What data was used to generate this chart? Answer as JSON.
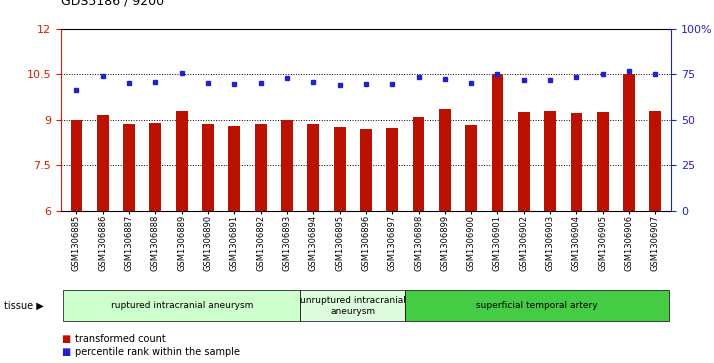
{
  "title": "GDS5186 / 9200",
  "samples": [
    "GSM1306885",
    "GSM1306886",
    "GSM1306887",
    "GSM1306888",
    "GSM1306889",
    "GSM1306890",
    "GSM1306891",
    "GSM1306892",
    "GSM1306893",
    "GSM1306894",
    "GSM1306895",
    "GSM1306896",
    "GSM1306897",
    "GSM1306898",
    "GSM1306899",
    "GSM1306900",
    "GSM1306901",
    "GSM1306902",
    "GSM1306903",
    "GSM1306904",
    "GSM1306905",
    "GSM1306906",
    "GSM1306907"
  ],
  "bar_values": [
    9.0,
    9.15,
    8.85,
    8.9,
    9.3,
    8.85,
    8.8,
    8.85,
    9.0,
    8.85,
    8.75,
    8.7,
    8.72,
    9.1,
    9.35,
    8.82,
    10.5,
    9.25,
    9.3,
    9.22,
    9.25,
    10.5,
    9.3
  ],
  "dot_values": [
    10.0,
    10.45,
    10.2,
    10.25,
    10.55,
    10.22,
    10.18,
    10.22,
    10.38,
    10.25,
    10.15,
    10.17,
    10.17,
    10.43,
    10.35,
    10.22,
    10.5,
    10.3,
    10.3,
    10.42,
    10.5,
    10.6,
    10.52
  ],
  "ylim_left": [
    6,
    12
  ],
  "ylim_right": [
    0,
    100
  ],
  "yticks_left": [
    6,
    7.5,
    9,
    10.5,
    12
  ],
  "yticks_right": [
    0,
    25,
    50,
    75,
    100
  ],
  "ytick_labels_left": [
    "6",
    "7.5",
    "9",
    "10.5",
    "12"
  ],
  "ytick_labels_right": [
    "0",
    "25",
    "50",
    "75",
    "100%"
  ],
  "bar_color": "#bb1100",
  "dot_color": "#2222cc",
  "bg_color": "#ffffff",
  "tissue_groups": [
    {
      "label": "ruptured intracranial aneurysm",
      "start": 0,
      "end": 9,
      "color": "#ccffcc"
    },
    {
      "label": "unruptured intracranial\naneurysm",
      "start": 9,
      "end": 13,
      "color": "#ddfcdd"
    },
    {
      "label": "superficial temporal artery",
      "start": 13,
      "end": 23,
      "color": "#44cc44"
    }
  ],
  "legend_items": [
    {
      "label": "transformed count",
      "color": "#bb1100"
    },
    {
      "label": "percentile rank within the sample",
      "color": "#2222cc"
    }
  ],
  "ylabel_left_color": "#cc2200",
  "ylabel_right_color": "#2222cc"
}
